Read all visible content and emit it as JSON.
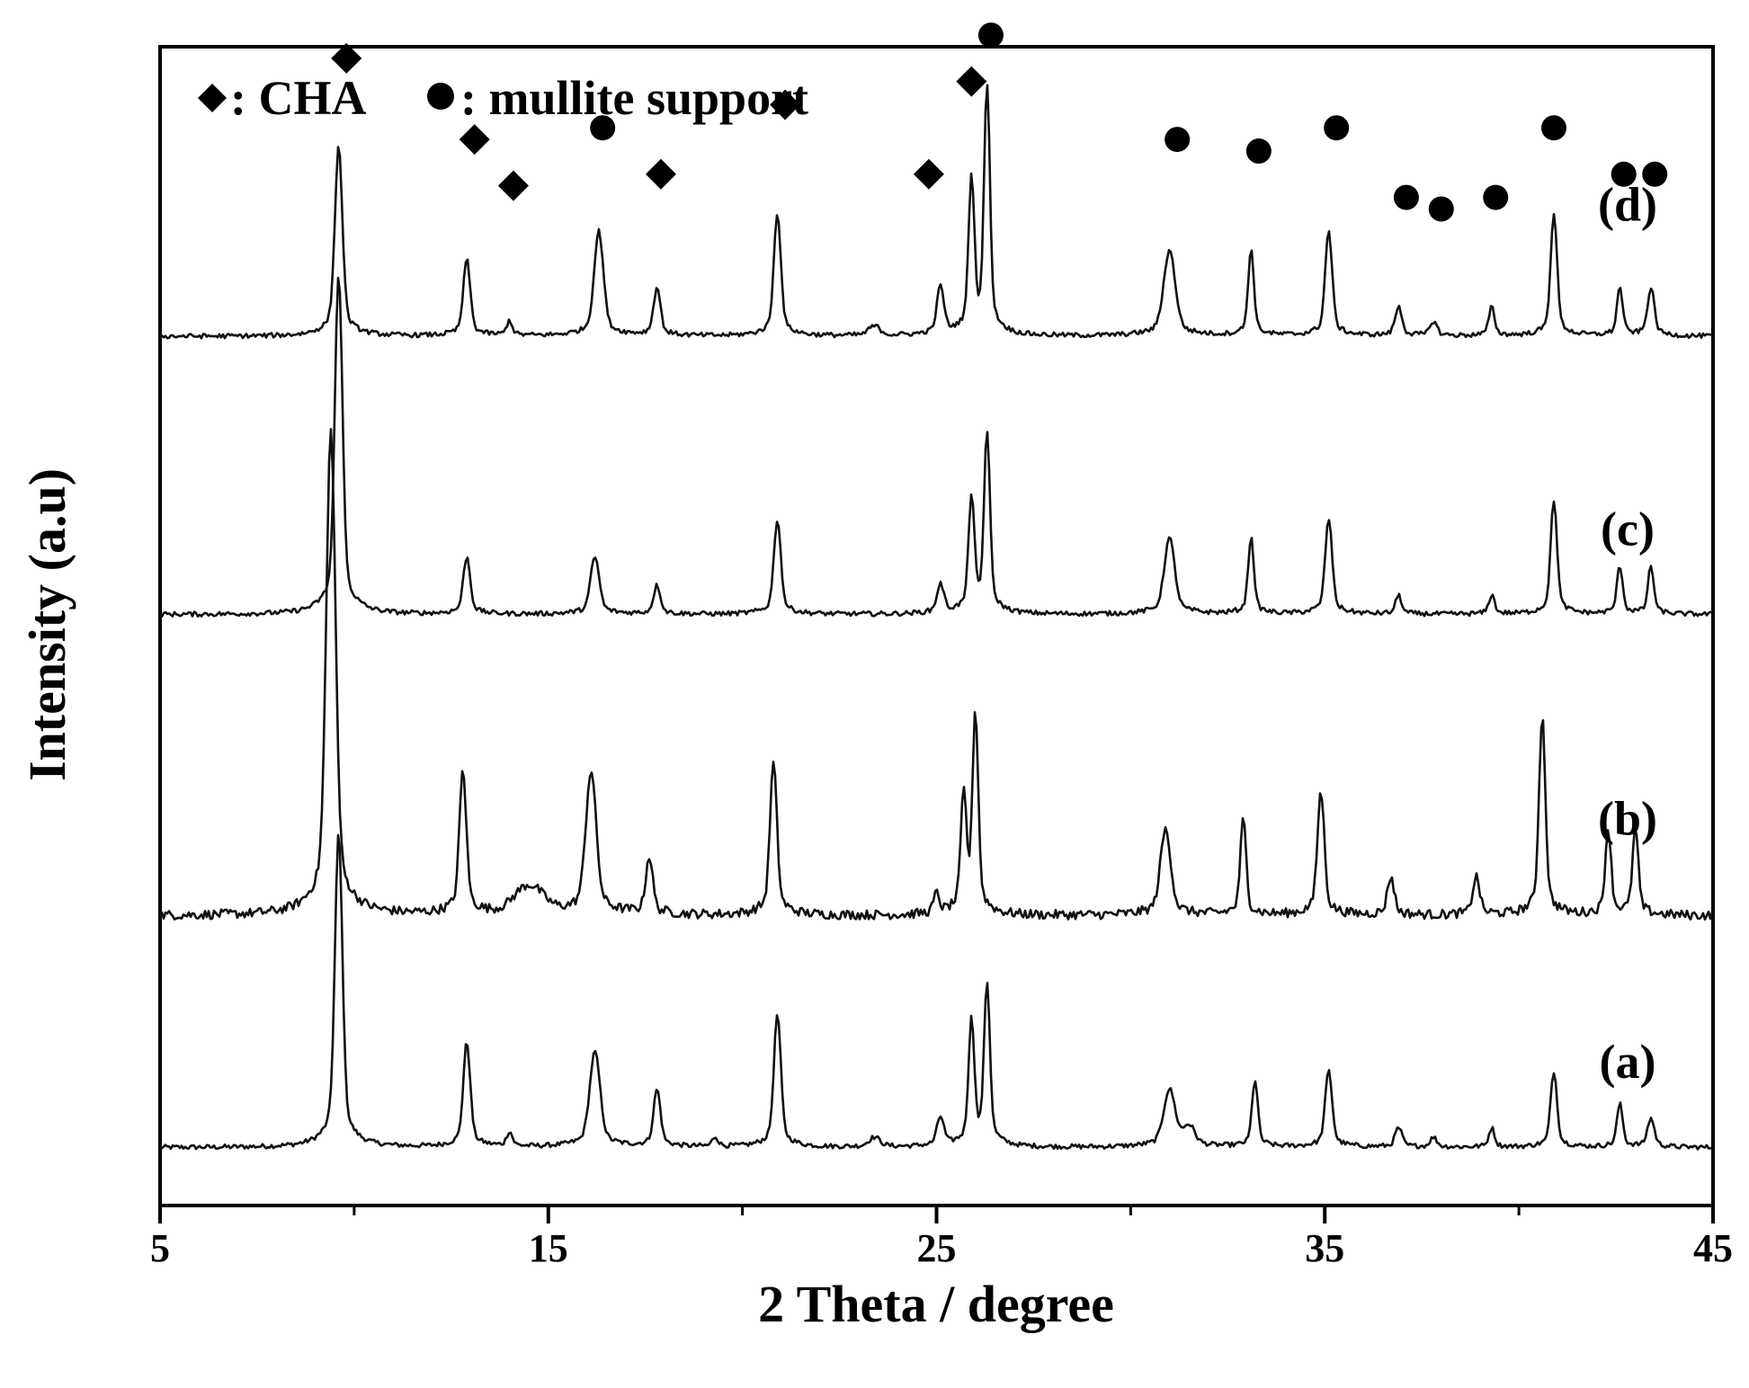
{
  "chart_data": {
    "type": "line",
    "xlabel": "2 Theta / degree",
    "ylabel": "Intensity (a.u)",
    "xlim": [
      5,
      45
    ],
    "xticks": [
      5,
      15,
      25,
      35,
      45
    ],
    "grid": false,
    "yticks_shown": false,
    "legend": {
      "placement": "top-left",
      "entries": [
        {
          "marker": "diamond",
          "label": ": CHA"
        },
        {
          "marker": "circle",
          "label": ": mullite support"
        }
      ]
    },
    "series": [
      {
        "name": "(a)",
        "baseline": 0.05,
        "peaks": [
          {
            "x": 9.6,
            "h": 0.33,
            "w": 0.13
          },
          {
            "x": 12.9,
            "h": 0.11,
            "w": 0.12
          },
          {
            "x": 14.0,
            "h": 0.015,
            "w": 0.1
          },
          {
            "x": 16.2,
            "h": 0.1,
            "w": 0.18
          },
          {
            "x": 17.8,
            "h": 0.06,
            "w": 0.12
          },
          {
            "x": 19.3,
            "h": 0.01,
            "w": 0.1
          },
          {
            "x": 20.9,
            "h": 0.14,
            "w": 0.12
          },
          {
            "x": 23.4,
            "h": 0.01,
            "w": 0.2
          },
          {
            "x": 25.1,
            "h": 0.03,
            "w": 0.12
          },
          {
            "x": 25.9,
            "h": 0.13,
            "w": 0.1
          },
          {
            "x": 26.3,
            "h": 0.17,
            "w": 0.1
          },
          {
            "x": 31.0,
            "h": 0.06,
            "w": 0.2
          },
          {
            "x": 31.5,
            "h": 0.02,
            "w": 0.2
          },
          {
            "x": 33.2,
            "h": 0.07,
            "w": 0.1
          },
          {
            "x": 35.1,
            "h": 0.08,
            "w": 0.12
          },
          {
            "x": 36.9,
            "h": 0.02,
            "w": 0.12
          },
          {
            "x": 37.8,
            "h": 0.01,
            "w": 0.12
          },
          {
            "x": 39.3,
            "h": 0.02,
            "w": 0.1
          },
          {
            "x": 40.9,
            "h": 0.08,
            "w": 0.11
          },
          {
            "x": 42.6,
            "h": 0.045,
            "w": 0.1
          },
          {
            "x": 43.4,
            "h": 0.03,
            "w": 0.12
          }
        ]
      },
      {
        "name": "(b)",
        "baseline": 0.25,
        "peaks": [
          {
            "x": 9.4,
            "h": 0.51,
            "w": 0.16
          },
          {
            "x": 12.8,
            "h": 0.15,
            "w": 0.12
          },
          {
            "x": 14.5,
            "h": 0.03,
            "w": 0.5
          },
          {
            "x": 16.1,
            "h": 0.15,
            "w": 0.18
          },
          {
            "x": 17.6,
            "h": 0.06,
            "w": 0.12
          },
          {
            "x": 20.8,
            "h": 0.16,
            "w": 0.12
          },
          {
            "x": 25.0,
            "h": 0.02,
            "w": 0.1
          },
          {
            "x": 25.7,
            "h": 0.12,
            "w": 0.1
          },
          {
            "x": 26.0,
            "h": 0.21,
            "w": 0.1
          },
          {
            "x": 30.9,
            "h": 0.09,
            "w": 0.18
          },
          {
            "x": 32.9,
            "h": 0.1,
            "w": 0.1
          },
          {
            "x": 34.9,
            "h": 0.13,
            "w": 0.12
          },
          {
            "x": 36.7,
            "h": 0.04,
            "w": 0.12
          },
          {
            "x": 38.9,
            "h": 0.04,
            "w": 0.12
          },
          {
            "x": 40.6,
            "h": 0.21,
            "w": 0.11
          },
          {
            "x": 42.3,
            "h": 0.09,
            "w": 0.1
          },
          {
            "x": 43.0,
            "h": 0.09,
            "w": 0.1
          }
        ]
      },
      {
        "name": "(c)",
        "baseline": 0.51,
        "peaks": [
          {
            "x": 9.6,
            "h": 0.36,
            "w": 0.13
          },
          {
            "x": 12.9,
            "h": 0.06,
            "w": 0.12
          },
          {
            "x": 16.2,
            "h": 0.06,
            "w": 0.15
          },
          {
            "x": 17.8,
            "h": 0.03,
            "w": 0.12
          },
          {
            "x": 20.9,
            "h": 0.1,
            "w": 0.12
          },
          {
            "x": 25.1,
            "h": 0.03,
            "w": 0.12
          },
          {
            "x": 25.9,
            "h": 0.12,
            "w": 0.1
          },
          {
            "x": 26.3,
            "h": 0.19,
            "w": 0.1
          },
          {
            "x": 31.0,
            "h": 0.08,
            "w": 0.18
          },
          {
            "x": 33.1,
            "h": 0.08,
            "w": 0.1
          },
          {
            "x": 35.1,
            "h": 0.1,
            "w": 0.12
          },
          {
            "x": 36.9,
            "h": 0.02,
            "w": 0.1
          },
          {
            "x": 39.3,
            "h": 0.02,
            "w": 0.1
          },
          {
            "x": 40.9,
            "h": 0.12,
            "w": 0.11
          },
          {
            "x": 42.6,
            "h": 0.05,
            "w": 0.1
          },
          {
            "x": 43.4,
            "h": 0.05,
            "w": 0.1
          }
        ]
      },
      {
        "name": "(d)",
        "baseline": 0.75,
        "peaks": [
          {
            "x": 9.6,
            "h": 0.2,
            "w": 0.13
          },
          {
            "x": 12.9,
            "h": 0.08,
            "w": 0.12
          },
          {
            "x": 14.0,
            "h": 0.015,
            "w": 0.1
          },
          {
            "x": 16.3,
            "h": 0.11,
            "w": 0.16
          },
          {
            "x": 17.8,
            "h": 0.05,
            "w": 0.12
          },
          {
            "x": 20.9,
            "h": 0.13,
            "w": 0.12
          },
          {
            "x": 23.4,
            "h": 0.01,
            "w": 0.2
          },
          {
            "x": 25.1,
            "h": 0.05,
            "w": 0.12
          },
          {
            "x": 25.9,
            "h": 0.16,
            "w": 0.1
          },
          {
            "x": 26.3,
            "h": 0.26,
            "w": 0.1
          },
          {
            "x": 31.0,
            "h": 0.09,
            "w": 0.2
          },
          {
            "x": 33.1,
            "h": 0.09,
            "w": 0.1
          },
          {
            "x": 35.1,
            "h": 0.11,
            "w": 0.12
          },
          {
            "x": 36.9,
            "h": 0.03,
            "w": 0.12
          },
          {
            "x": 37.8,
            "h": 0.015,
            "w": 0.12
          },
          {
            "x": 39.3,
            "h": 0.03,
            "w": 0.1
          },
          {
            "x": 40.9,
            "h": 0.13,
            "w": 0.11
          },
          {
            "x": 42.6,
            "h": 0.05,
            "w": 0.1
          },
          {
            "x": 43.4,
            "h": 0.05,
            "w": 0.12
          }
        ]
      }
    ],
    "annotations": [
      {
        "series": "(d)",
        "marker": "diamond",
        "x": 9.8,
        "y": 0.99
      },
      {
        "series": "(d)",
        "marker": "diamond",
        "x": 13.1,
        "y": 0.92
      },
      {
        "series": "(d)",
        "marker": "diamond",
        "x": 14.1,
        "y": 0.88
      },
      {
        "series": "(d)",
        "marker": "circle",
        "x": 16.4,
        "y": 0.93
      },
      {
        "series": "(d)",
        "marker": "diamond",
        "x": 17.9,
        "y": 0.89
      },
      {
        "series": "(d)",
        "marker": "diamond",
        "x": 21.1,
        "y": 0.95
      },
      {
        "series": "(d)",
        "marker": "diamond",
        "x": 24.8,
        "y": 0.89
      },
      {
        "series": "(d)",
        "marker": "diamond",
        "x": 25.9,
        "y": 0.97
      },
      {
        "series": "(d)",
        "marker": "circle",
        "x": 26.4,
        "y": 1.01
      },
      {
        "series": "(d)",
        "marker": "circle",
        "x": 31.2,
        "y": 0.92
      },
      {
        "series": "(d)",
        "marker": "circle",
        "x": 33.3,
        "y": 0.91
      },
      {
        "series": "(d)",
        "marker": "circle",
        "x": 35.3,
        "y": 0.93
      },
      {
        "series": "(d)",
        "marker": "circle",
        "x": 37.1,
        "y": 0.87
      },
      {
        "series": "(d)",
        "marker": "circle",
        "x": 38.0,
        "y": 0.86
      },
      {
        "series": "(d)",
        "marker": "circle",
        "x": 39.4,
        "y": 0.87
      },
      {
        "series": "(d)",
        "marker": "circle",
        "x": 40.9,
        "y": 0.93
      },
      {
        "series": "(d)",
        "marker": "circle",
        "x": 42.7,
        "y": 0.89
      },
      {
        "series": "(d)",
        "marker": "circle",
        "x": 43.5,
        "y": 0.89
      }
    ]
  }
}
